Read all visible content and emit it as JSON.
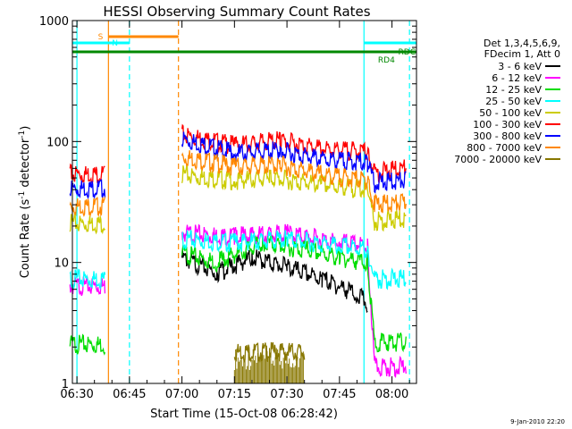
{
  "chart_data": {
    "type": "line",
    "title": "HESSI Observing Summary Count Rates",
    "xlabel": "Start Time (15-Oct-08 06:28:42)",
    "ylabel": "Count Rate (s-1 detector-1)",
    "ylabel_parts": {
      "main": "Count Rate (s",
      "sup1": "-1",
      "mid": " detector",
      "sup2": "-1",
      "end": ")"
    },
    "y_scale": "log",
    "xlim": [
      "06:28:42",
      "08:07:00"
    ],
    "ylim": [
      1,
      1000
    ],
    "x_ticks": [
      "06:30",
      "06:45",
      "07:00",
      "07:15",
      "07:30",
      "07:45",
      "08:00"
    ],
    "y_ticks": [
      "1",
      "10",
      "100",
      "1000"
    ],
    "grid": false,
    "legend_position": "right",
    "legend_header": [
      "Det 1,3,4,5,6,9,",
      "FDecim 1, Att 0"
    ],
    "footer_date": "9-Jan-2010 22:20",
    "series": [
      {
        "name": "3 - 6 keV",
        "color": "#000000",
        "level_points": [
          [
            "06:58",
            0
          ],
          [
            "07:00",
            12
          ],
          [
            "07:10",
            9
          ],
          [
            "07:20",
            12
          ],
          [
            "07:30",
            10
          ],
          [
            "07:40",
            8
          ],
          [
            "07:50",
            6
          ],
          [
            "07:53",
            5
          ]
        ]
      },
      {
        "name": "6 - 12 keV",
        "color": "#ff00ff",
        "level_points": [
          [
            "06:28",
            7
          ],
          [
            "06:38",
            7
          ],
          [
            "06:58",
            0
          ],
          [
            "07:00",
            19
          ],
          [
            "07:15",
            18
          ],
          [
            "07:30",
            19
          ],
          [
            "07:45",
            16
          ],
          [
            "07:53",
            15
          ],
          [
            "07:55",
            1.5
          ],
          [
            "08:04",
            1.5
          ]
        ]
      },
      {
        "name": "12 - 25 keV",
        "color": "#00dd00",
        "level_points": [
          [
            "06:28",
            2.3
          ],
          [
            "06:38",
            2.3
          ],
          [
            "06:58",
            0
          ],
          [
            "07:00",
            13
          ],
          [
            "07:10",
            11
          ],
          [
            "07:23",
            16
          ],
          [
            "07:35",
            14
          ],
          [
            "07:45",
            12
          ],
          [
            "07:53",
            11
          ],
          [
            "07:55",
            2.4
          ],
          [
            "08:04",
            2.4
          ]
        ]
      },
      {
        "name": "25 - 50 keV",
        "color": "#00ffff",
        "level_points": [
          [
            "06:28",
            8
          ],
          [
            "06:38",
            8
          ],
          [
            "06:58",
            0
          ],
          [
            "07:00",
            17
          ],
          [
            "07:15",
            16
          ],
          [
            "07:30",
            17
          ],
          [
            "07:45",
            15
          ],
          [
            "07:53",
            14
          ],
          [
            "07:55",
            8
          ],
          [
            "08:04",
            8
          ]
        ]
      },
      {
        "name": "50 - 100 keV",
        "color": "#cccc00",
        "level_points": [
          [
            "06:28",
            23
          ],
          [
            "06:38",
            23
          ],
          [
            "06:58",
            0
          ],
          [
            "07:00",
            58
          ],
          [
            "07:15",
            52
          ],
          [
            "07:25",
            55
          ],
          [
            "07:40",
            48
          ],
          [
            "07:53",
            44
          ],
          [
            "07:55",
            24
          ],
          [
            "08:04",
            25
          ]
        ]
      },
      {
        "name": "100 - 300 keV",
        "color": "#ff0000",
        "level_points": [
          [
            "06:28",
            59
          ],
          [
            "06:38",
            59
          ],
          [
            "06:58",
            0
          ],
          [
            "07:00",
            125
          ],
          [
            "07:15",
            102
          ],
          [
            "07:28",
            112
          ],
          [
            "07:40",
            95
          ],
          [
            "07:53",
            90
          ],
          [
            "07:55",
            60
          ],
          [
            "08:04",
            66
          ]
        ]
      },
      {
        "name": "300 - 800 keV",
        "color": "#0000ff",
        "level_points": [
          [
            "06:28",
            45
          ],
          [
            "06:38",
            45
          ],
          [
            "06:58",
            0
          ],
          [
            "07:00",
            115
          ],
          [
            "07:15",
            88
          ],
          [
            "07:28",
            92
          ],
          [
            "07:40",
            78
          ],
          [
            "07:53",
            73
          ],
          [
            "07:55",
            50
          ],
          [
            "08:04",
            52
          ]
        ]
      },
      {
        "name": "800 - 7000 keV",
        "color": "#ff8800",
        "level_points": [
          [
            "06:28",
            32
          ],
          [
            "06:38",
            32
          ],
          [
            "06:58",
            0
          ],
          [
            "07:00",
            82
          ],
          [
            "07:15",
            68
          ],
          [
            "07:28",
            70
          ],
          [
            "07:40",
            58
          ],
          [
            "07:53",
            52
          ],
          [
            "07:55",
            33
          ],
          [
            "08:04",
            34
          ]
        ]
      },
      {
        "name": "7000 - 20000 keV",
        "color": "#887700",
        "level_points": [
          [
            "07:15",
            2
          ],
          [
            "07:35",
            2
          ]
        ]
      }
    ],
    "annotations": [
      {
        "label": "S",
        "color": "#ff8800"
      },
      {
        "label": "N",
        "color": "#00ffff"
      },
      {
        "label": "RDC",
        "color": "#008800"
      },
      {
        "label": "RD4",
        "color": "#008800"
      }
    ]
  }
}
